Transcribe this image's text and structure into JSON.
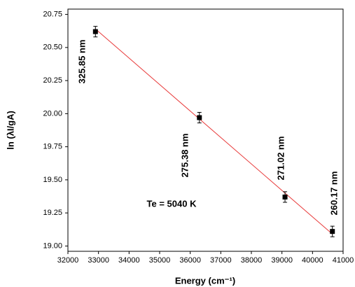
{
  "chart_data": {
    "type": "scatter",
    "x_label": "Energy (cm⁻¹)",
    "y_label": "ln (λI/gA)",
    "annotation": "Te = 5040 K",
    "xlim": [
      32000,
      41000
    ],
    "ylim": [
      18.96,
      20.79
    ],
    "xticks": [
      32000,
      33000,
      34000,
      35000,
      36000,
      37000,
      38000,
      39000,
      40000,
      41000
    ],
    "yticks": [
      {
        "value": 19,
        "label": "19.00"
      },
      19.25,
      {
        "value": 19.5,
        "label": "19.50"
      },
      19.75,
      {
        "value": 20,
        "label": "20.00"
      },
      20.25,
      {
        "value": 20.5,
        "label": "20.50"
      },
      20.75
    ],
    "series": [
      {
        "color": "#000000",
        "x": [
          32900,
          36300,
          39100,
          40650
        ],
        "values": [
          20.62,
          19.97,
          19.37,
          19.11
        ],
        "errors": [
          0.04,
          0.04,
          0.04,
          0.04
        ],
        "point_labels": [
          "325.85 nm",
          "275.38 nm",
          "271.02 nm",
          "260.17 nm"
        ]
      }
    ],
    "fit_line": {
      "color": "#e83a3a",
      "x": [
        32900,
        40650
      ],
      "y": [
        20.64,
        19.09
      ]
    }
  }
}
